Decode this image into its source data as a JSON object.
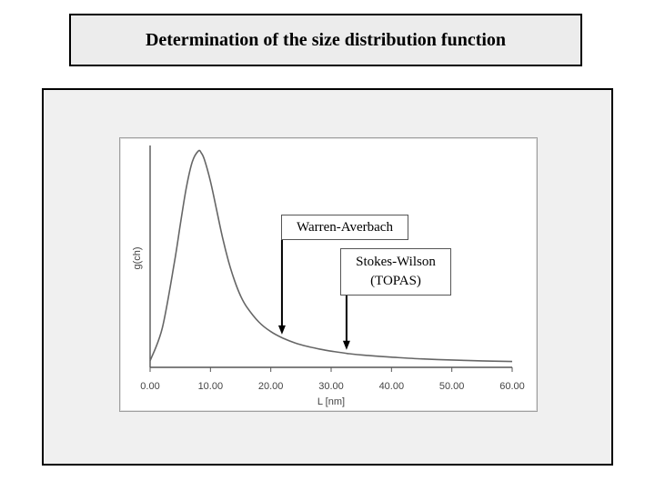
{
  "slide": {
    "title": "Determination of the size distribution function"
  },
  "chart_data": {
    "type": "line",
    "title": "",
    "xlabel": "L [nm]",
    "ylabel": "g(ch)",
    "xlim": [
      0,
      60
    ],
    "x_ticks": [
      "0.00",
      "10.00",
      "20.00",
      "30.00",
      "40.00",
      "50.00",
      "60.00"
    ],
    "y_ticks": [],
    "grid": false,
    "legend": "none",
    "series": [
      {
        "line_color": "#666666",
        "x": [
          0,
          2,
          4,
          5,
          6,
          7,
          8,
          8.5,
          9,
          10,
          11,
          12,
          13,
          14,
          15,
          16,
          18,
          20,
          22,
          24,
          26,
          28,
          30,
          33,
          36,
          40,
          45,
          50,
          55,
          60
        ],
        "y": [
          0.03,
          0.18,
          0.48,
          0.66,
          0.83,
          0.95,
          1.0,
          0.99,
          0.96,
          0.86,
          0.73,
          0.6,
          0.49,
          0.4,
          0.33,
          0.28,
          0.21,
          0.165,
          0.135,
          0.113,
          0.097,
          0.085,
          0.075,
          0.063,
          0.055,
          0.047,
          0.039,
          0.034,
          0.03,
          0.027
        ]
      }
    ],
    "annotations": [
      {
        "text": "Warren-Averbach",
        "x": 22
      },
      {
        "lines": [
          "Stokes-Wilson",
          "(TOPAS)"
        ],
        "x": 32.7
      }
    ]
  }
}
